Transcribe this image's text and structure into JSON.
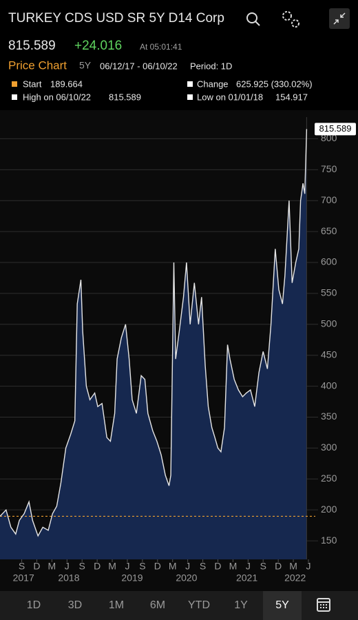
{
  "header": {
    "title": "TURKEY CDS USD SR 5Y D14 Corp",
    "last": "815.589",
    "change": "+24.016",
    "time": "At 05:01:41",
    "tab": "Price Chart",
    "range": "5Y",
    "dates": "06/12/17 - 06/10/22",
    "period": "Period: 1D"
  },
  "stats": {
    "start_label": "Start",
    "start": "189.664",
    "change_label": "Change",
    "change": "625.925 (330.02%)",
    "high_label": "High on 06/10/22",
    "high": "815.589",
    "low_label": "Low on 01/01/18",
    "low": "154.917"
  },
  "nav": [
    "1D",
    "3D",
    "1M",
    "6M",
    "YTD",
    "1Y",
    "5Y"
  ],
  "chart_data": {
    "type": "area",
    "line_color": "#e6e6e6",
    "fill_color": "#16284f",
    "reference_line": 189.664,
    "reference_color": "#f0a030",
    "x": [
      2017.31,
      2017.41,
      2017.49,
      2017.57,
      2017.63,
      2017.71,
      2017.79,
      2017.85,
      2017.94,
      2018.02,
      2018.11,
      2018.18,
      2018.25,
      2018.32,
      2018.4,
      2018.48,
      2018.55,
      2018.59,
      2018.65,
      2018.68,
      2018.74,
      2018.8,
      2018.88,
      2018.93,
      2019.0,
      2019.08,
      2019.14,
      2019.21,
      2019.25,
      2019.32,
      2019.39,
      2019.45,
      2019.5,
      2019.57,
      2019.65,
      2019.71,
      2019.76,
      2019.84,
      2019.91,
      2019.98,
      2020.05,
      2020.11,
      2020.14,
      2020.19,
      2020.22,
      2020.28,
      2020.35,
      2020.4,
      2020.46,
      2020.53,
      2020.6,
      2020.65,
      2020.71,
      2020.76,
      2020.82,
      2020.87,
      2020.92,
      2020.97,
      2021.03,
      2021.08,
      2021.12,
      2021.19,
      2021.26,
      2021.33,
      2021.39,
      2021.46,
      2021.53,
      2021.6,
      2021.67,
      2021.74,
      2021.8,
      2021.87,
      2021.93,
      2021.99,
      2022.03,
      2022.1,
      2022.15,
      2022.21,
      2022.26,
      2022.29,
      2022.33,
      2022.36,
      2022.39
    ],
    "values": [
      189.664,
      200,
      172,
      161,
      183,
      194,
      213,
      183,
      158,
      172,
      167,
      194,
      206,
      244,
      300,
      322,
      344,
      533,
      572,
      489,
      400,
      378,
      389,
      367,
      372,
      317,
      311,
      356,
      444,
      478,
      500,
      444,
      378,
      356,
      417,
      411,
      356,
      328,
      311,
      289,
      256,
      239,
      256,
      600,
      444,
      489,
      544,
      600,
      500,
      567,
      500,
      544,
      433,
      367,
      333,
      317,
      300,
      294,
      333,
      467,
      444,
      411,
      394,
      383,
      389,
      394,
      367,
      422,
      456,
      428,
      500,
      622,
      556,
      533,
      578,
      700,
      567,
      600,
      622,
      700,
      728,
      711,
      815.589
    ],
    "xlim": [
      2017.31,
      2022.5
    ],
    "ylim": [
      120,
      835
    ],
    "yticks": [
      150,
      200,
      250,
      300,
      350,
      400,
      450,
      500,
      550,
      600,
      650,
      700,
      750,
      800
    ],
    "xticks": [
      {
        "value": 2017.67,
        "label": "S"
      },
      {
        "value": 2017.92,
        "label": "D"
      },
      {
        "value": 2018.17,
        "label": "M"
      },
      {
        "value": 2018.42,
        "label": "J"
      },
      {
        "value": 2018.67,
        "label": "S"
      },
      {
        "value": 2018.92,
        "label": "D"
      },
      {
        "value": 2019.17,
        "label": "M"
      },
      {
        "value": 2019.42,
        "label": "J"
      },
      {
        "value": 2019.67,
        "label": "S"
      },
      {
        "value": 2019.92,
        "label": "D"
      },
      {
        "value": 2020.17,
        "label": "M"
      },
      {
        "value": 2020.42,
        "label": "J"
      },
      {
        "value": 2020.67,
        "label": "S"
      },
      {
        "value": 2020.92,
        "label": "D"
      },
      {
        "value": 2021.17,
        "label": "M"
      },
      {
        "value": 2021.42,
        "label": "J"
      },
      {
        "value": 2021.67,
        "label": "S"
      },
      {
        "value": 2021.92,
        "label": "D"
      },
      {
        "value": 2022.17,
        "label": "M"
      },
      {
        "value": 2022.42,
        "label": "J"
      }
    ],
    "xyears": [
      {
        "value": 2017.7,
        "label": "2017"
      },
      {
        "value": 2018.45,
        "label": "2018"
      },
      {
        "value": 2019.5,
        "label": "2019"
      },
      {
        "value": 2020.4,
        "label": "2020"
      },
      {
        "value": 2021.4,
        "label": "2021"
      },
      {
        "value": 2022.2,
        "label": "2022"
      }
    ],
    "grid": true
  }
}
